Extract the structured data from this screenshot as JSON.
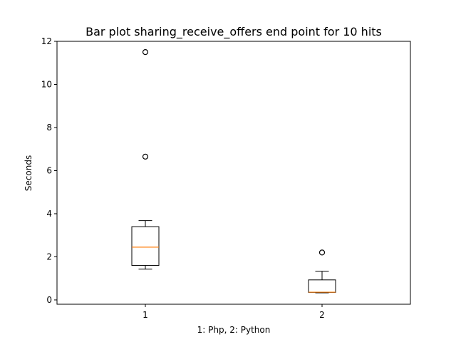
{
  "chart_data": {
    "type": "boxplot",
    "title": "Bar plot sharing_receive_offers end point for 10 hits",
    "xlabel": "1: Php, 2: Python",
    "ylabel": "Seconds",
    "ylim": [
      -0.2,
      12.0
    ],
    "yticks": [
      0,
      2,
      4,
      6,
      8,
      10,
      12
    ],
    "categories": [
      "1",
      "2"
    ],
    "grid": false,
    "boxes": [
      {
        "category": "1",
        "whisker_low": 1.43,
        "q1": 1.6,
        "median": 2.45,
        "q3": 3.4,
        "whisker_high": 3.68,
        "outliers": [
          6.65,
          11.5
        ]
      },
      {
        "category": "2",
        "whisker_low": 0.33,
        "q1": 0.35,
        "median": 0.36,
        "q3": 0.93,
        "whisker_high": 1.33,
        "outliers": [
          2.2
        ]
      }
    ],
    "colors": {
      "box": "#000000",
      "median": "#ff7f0e",
      "outlier": "#000000"
    }
  }
}
